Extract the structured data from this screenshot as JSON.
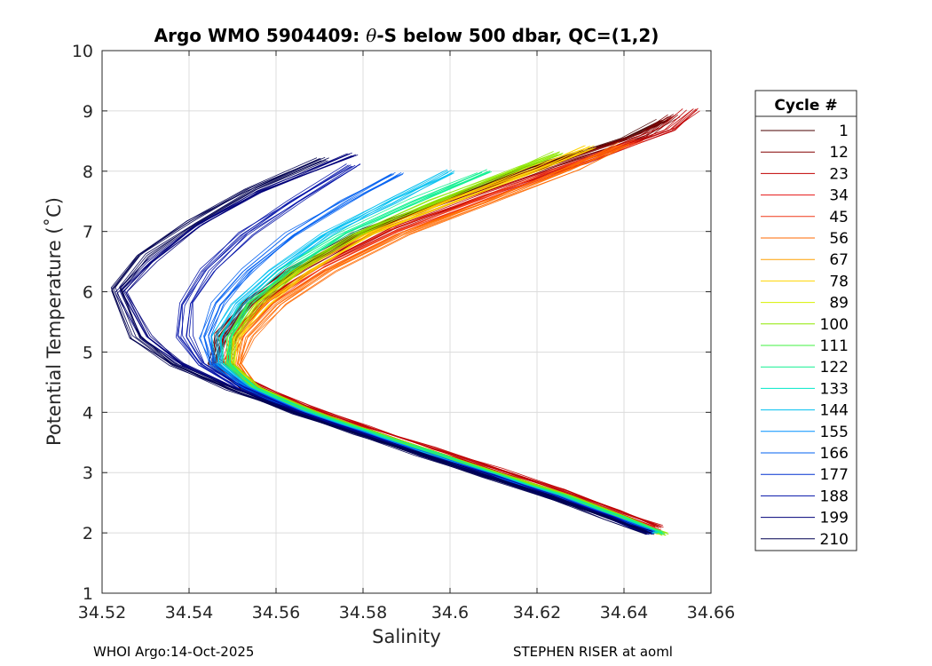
{
  "chart_data": {
    "type": "line",
    "title": "Argo WMO 5904409: θ-S below 500 dbar,  QC=(1,2)",
    "title_parts": [
      "Argo WMO 5904409: ",
      "θ",
      "-S below 500 dbar,  QC=(1,2)"
    ],
    "xlabel": "Salinity",
    "ylabel": "Potential Temperature (˚C)",
    "xlim": [
      34.52,
      34.66
    ],
    "ylim": [
      1,
      10
    ],
    "xticks": [
      34.52,
      34.54,
      34.56,
      34.58,
      34.6,
      34.62,
      34.64,
      34.66
    ],
    "xtick_labels": [
      "34.52",
      "34.54",
      "34.56",
      "34.58",
      "34.6",
      "34.62",
      "34.64",
      "34.66"
    ],
    "yticks": [
      1,
      2,
      3,
      4,
      5,
      6,
      7,
      8,
      9,
      10
    ],
    "ytick_labels": [
      "1",
      "2",
      "3",
      "4",
      "5",
      "6",
      "7",
      "8",
      "9",
      "10"
    ],
    "grid": true,
    "legend": {
      "title": "Cycle #",
      "placement": "right",
      "entries": [
        {
          "label": "1",
          "color": "#4a0000"
        },
        {
          "label": "12",
          "color": "#820000"
        },
        {
          "label": "23",
          "color": "#c00000"
        },
        {
          "label": "34",
          "color": "#e61515"
        },
        {
          "label": "45",
          "color": "#f03818"
        },
        {
          "label": "56",
          "color": "#ff6a00"
        },
        {
          "label": "67",
          "color": "#ffa000"
        },
        {
          "label": "78",
          "color": "#ffd400"
        },
        {
          "label": "89",
          "color": "#d8f000"
        },
        {
          "label": "100",
          "color": "#8ee800"
        },
        {
          "label": "111",
          "color": "#40f040"
        },
        {
          "label": "122",
          "color": "#10f090"
        },
        {
          "label": "133",
          "color": "#00e8c8"
        },
        {
          "label": "144",
          "color": "#00c0f0"
        },
        {
          "label": "155",
          "color": "#0090ff"
        },
        {
          "label": "166",
          "color": "#0060f0"
        },
        {
          "label": "177",
          "color": "#0030d0"
        },
        {
          "label": "188",
          "color": "#0010a8"
        },
        {
          "label": "199",
          "color": "#00007a"
        },
        {
          "label": "210",
          "color": "#000050"
        }
      ]
    },
    "series": [
      {
        "name": "1",
        "color": "#4a0000",
        "S": [
          34.6465,
          34.638,
          34.625,
          34.61,
          34.595,
          34.58,
          34.565,
          34.552,
          34.545,
          34.547,
          34.553,
          34.563,
          34.578,
          34.597,
          34.618,
          34.64,
          34.6485
        ],
        "T": [
          2.0,
          2.25,
          2.6,
          2.95,
          3.3,
          3.65,
          4.0,
          4.4,
          4.8,
          5.25,
          5.8,
          6.35,
          6.95,
          7.5,
          8.05,
          8.55,
          8.85
        ]
      },
      {
        "name": "12",
        "color": "#820000",
        "S": [
          34.647,
          34.638,
          34.625,
          34.61,
          34.595,
          34.58,
          34.566,
          34.553,
          34.546,
          34.548,
          34.555,
          34.566,
          34.582,
          34.602,
          34.624,
          34.645,
          34.652
        ],
        "T": [
          2.05,
          2.3,
          2.65,
          3.0,
          3.35,
          3.7,
          4.05,
          4.45,
          4.85,
          5.3,
          5.85,
          6.4,
          7.0,
          7.55,
          8.1,
          8.6,
          8.92
        ]
      },
      {
        "name": "23",
        "color": "#c00000",
        "S": [
          34.648,
          34.639,
          34.626,
          34.611,
          34.596,
          34.581,
          34.567,
          34.554,
          34.548,
          34.55,
          34.557,
          34.569,
          34.586,
          34.607,
          34.63,
          34.65,
          34.6555
        ],
        "T": [
          2.1,
          2.35,
          2.7,
          3.05,
          3.4,
          3.75,
          4.1,
          4.5,
          4.9,
          5.35,
          5.9,
          6.45,
          7.05,
          7.6,
          8.15,
          8.7,
          9.03
        ]
      },
      {
        "name": "45",
        "color": "#f03818",
        "S": [
          34.6475,
          34.6385,
          34.6255,
          34.6105,
          34.5955,
          34.5808,
          34.5668,
          34.5542,
          34.5485,
          34.5512,
          34.5585,
          34.5705,
          34.5875,
          34.608,
          34.628,
          34.643
        ],
        "T": [
          2.05,
          2.3,
          2.65,
          3.0,
          3.35,
          3.7,
          4.05,
          4.45,
          4.85,
          5.3,
          5.85,
          6.4,
          7.0,
          7.55,
          8.1,
          8.5
        ]
      },
      {
        "name": "56",
        "color": "#ff6a00",
        "S": [
          34.647,
          34.638,
          34.625,
          34.61,
          34.5955,
          34.581,
          34.567,
          34.5555,
          34.5515,
          34.5535,
          34.5605,
          34.572,
          34.589,
          34.609,
          34.628,
          34.64
        ],
        "T": [
          2.0,
          2.25,
          2.6,
          2.95,
          3.3,
          3.65,
          4.0,
          4.4,
          4.8,
          5.25,
          5.8,
          6.35,
          6.95,
          7.5,
          8.05,
          8.45
        ]
      },
      {
        "name": "78",
        "color": "#ffd400",
        "S": [
          34.6485,
          34.6395,
          34.6265,
          34.6115,
          34.5965,
          34.582,
          34.568,
          34.5555,
          34.5495,
          34.5505,
          34.5565,
          34.5665,
          34.581,
          34.6,
          34.62,
          34.632
        ],
        "T": [
          2.0,
          2.25,
          2.6,
          2.95,
          3.3,
          3.65,
          4.0,
          4.4,
          4.8,
          5.25,
          5.8,
          6.35,
          6.95,
          7.5,
          8.05,
          8.4
        ]
      },
      {
        "name": "100",
        "color": "#8ee800",
        "S": [
          34.6495,
          34.6405,
          34.6275,
          34.6125,
          34.5975,
          34.5828,
          34.5688,
          34.556,
          34.5495,
          34.5495,
          34.5548,
          34.5645,
          34.5785,
          34.5965,
          34.616,
          34.625
        ],
        "T": [
          1.98,
          2.25,
          2.6,
          2.95,
          3.3,
          3.65,
          4.0,
          4.4,
          4.8,
          5.25,
          5.8,
          6.35,
          6.95,
          7.5,
          8.05,
          8.3
        ]
      },
      {
        "name": "122",
        "color": "#10f090",
        "S": [
          34.6485,
          34.6395,
          34.6265,
          34.6115,
          34.5965,
          34.582,
          34.568,
          34.555,
          34.5485,
          34.5482,
          34.553,
          34.5618,
          34.575,
          34.592,
          34.608
        ],
        "T": [
          2.0,
          2.25,
          2.6,
          2.95,
          3.3,
          3.65,
          4.0,
          4.4,
          4.8,
          5.25,
          5.8,
          6.35,
          6.95,
          7.5,
          8.0
        ]
      },
      {
        "name": "144",
        "color": "#00c0f0",
        "S": [
          34.647,
          34.638,
          34.625,
          34.61,
          34.595,
          34.5805,
          34.5665,
          34.5535,
          34.547,
          34.5465,
          34.551,
          34.5595,
          34.5715,
          34.5865,
          34.6
        ],
        "T": [
          2.0,
          2.25,
          2.6,
          2.95,
          3.3,
          3.65,
          4.0,
          4.4,
          4.8,
          5.25,
          5.8,
          6.35,
          6.95,
          7.5,
          8.0
        ]
      },
      {
        "name": "166",
        "color": "#0060f0",
        "S": [
          34.6465,
          34.6375,
          34.6245,
          34.6095,
          34.5945,
          34.58,
          34.566,
          34.553,
          34.5455,
          34.5438,
          34.5468,
          34.5535,
          34.5635,
          34.576,
          34.588
        ],
        "T": [
          2.0,
          2.25,
          2.6,
          2.95,
          3.3,
          3.65,
          4.0,
          4.4,
          4.8,
          5.25,
          5.8,
          6.35,
          6.95,
          7.5,
          7.95
        ]
      },
      {
        "name": "188",
        "color": "#0010a8",
        "S": [
          34.646,
          34.637,
          34.624,
          34.609,
          34.594,
          34.5795,
          34.5655,
          34.552,
          34.543,
          34.539,
          34.5395,
          34.5445,
          34.553,
          34.5645,
          34.578
        ],
        "T": [
          2.0,
          2.25,
          2.6,
          2.95,
          3.3,
          3.65,
          4.0,
          4.4,
          4.8,
          5.25,
          5.8,
          6.35,
          6.95,
          7.5,
          8.1
        ]
      },
      {
        "name": "199",
        "color": "#00007a",
        "S": [
          34.6455,
          34.6365,
          34.6235,
          34.6085,
          34.5935,
          34.579,
          34.5645,
          34.55,
          34.538,
          34.53,
          34.5245,
          34.531,
          34.542,
          34.556,
          34.5775
        ],
        "T": [
          2.0,
          2.25,
          2.6,
          2.95,
          3.3,
          3.65,
          4.0,
          4.4,
          4.8,
          5.25,
          6.0,
          6.5,
          7.1,
          7.65,
          8.28
        ]
      },
      {
        "name": "210",
        "color": "#000050",
        "S": [
          34.6455,
          34.636,
          34.6225,
          34.6075,
          34.5925,
          34.578,
          34.5635,
          34.549,
          34.536,
          34.5275,
          34.523,
          34.529,
          34.5405,
          34.554,
          34.5705
        ],
        "T": [
          2.0,
          2.25,
          2.6,
          2.95,
          3.3,
          3.65,
          4.0,
          4.4,
          4.8,
          5.25,
          6.05,
          6.6,
          7.15,
          7.7,
          8.2
        ]
      }
    ]
  },
  "footer": {
    "left": "WHOI Argo:14-Oct-2025",
    "right": "STEPHEN RISER at aoml"
  }
}
